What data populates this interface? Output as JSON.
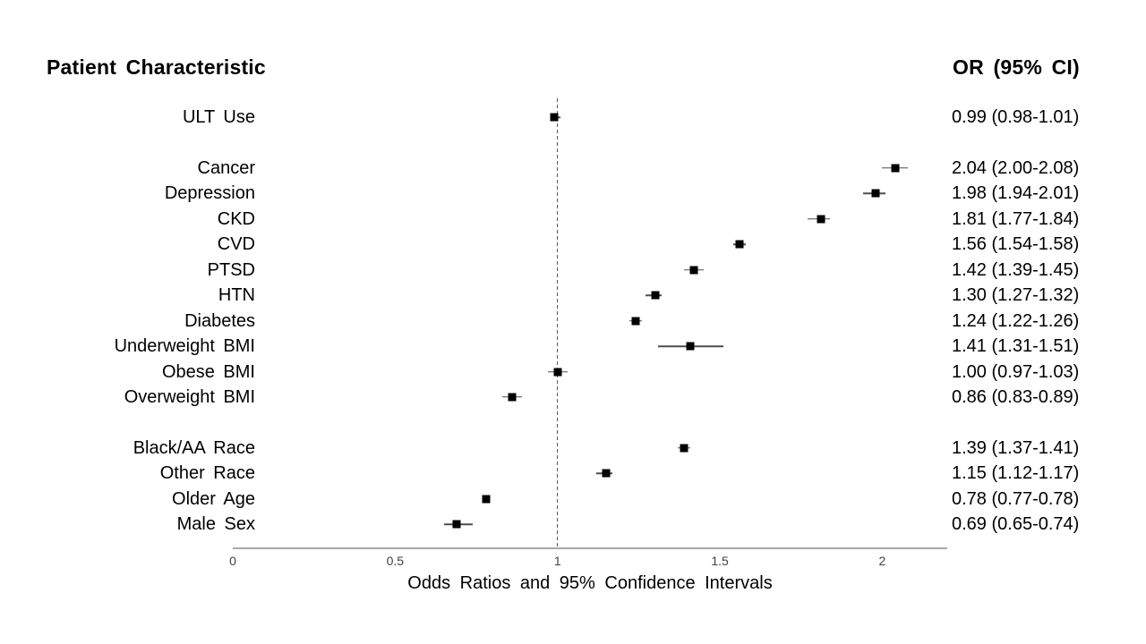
{
  "page": {
    "background": "#ffffff"
  },
  "headers": {
    "left": "Patient Characteristic",
    "right": "OR (95% CI)"
  },
  "colors": {
    "text": "#000000",
    "tick_text": "#404040",
    "axis_line": "#a9a9a9",
    "reference_line": "#595959",
    "whisker": "#4d4d4d",
    "marker": "#000000"
  },
  "chart_data": {
    "type": "scatter",
    "variant": "forest-plot",
    "title": "",
    "xlabel": "Odds Ratios and 95% Confidence Intervals",
    "ylabel_header": "Patient Characteristic",
    "value_header": "OR (95% CI)",
    "xlim": [
      0,
      2.2
    ],
    "grid": false,
    "reference_line_x": 1,
    "xticks": [
      {
        "value": 0,
        "label": "0"
      },
      {
        "value": 0.5,
        "label": "0.5"
      },
      {
        "value": 1,
        "label": "1"
      },
      {
        "value": 1.5,
        "label": "1.5"
      },
      {
        "value": 2,
        "label": "2"
      }
    ],
    "rows": [
      {
        "label": "ULT Use",
        "or": 0.99,
        "ci_low": 0.98,
        "ci_high": 1.01,
        "or_text": "0.99 (0.98-1.01)",
        "gap_before": false
      },
      {
        "label": "Cancer",
        "or": 2.04,
        "ci_low": 2.0,
        "ci_high": 2.08,
        "or_text": "2.04 (2.00-2.08)",
        "gap_before": true
      },
      {
        "label": "Depression",
        "or": 1.98,
        "ci_low": 1.94,
        "ci_high": 2.01,
        "or_text": "1.98 (1.94-2.01)",
        "gap_before": false
      },
      {
        "label": "CKD",
        "or": 1.81,
        "ci_low": 1.77,
        "ci_high": 1.84,
        "or_text": "1.81 (1.77-1.84)",
        "gap_before": false
      },
      {
        "label": "CVD",
        "or": 1.56,
        "ci_low": 1.54,
        "ci_high": 1.58,
        "or_text": "1.56 (1.54-1.58)",
        "gap_before": false
      },
      {
        "label": "PTSD",
        "or": 1.42,
        "ci_low": 1.39,
        "ci_high": 1.45,
        "or_text": "1.42 (1.39-1.45)",
        "gap_before": false
      },
      {
        "label": "HTN",
        "or": 1.3,
        "ci_low": 1.27,
        "ci_high": 1.32,
        "or_text": "1.30 (1.27-1.32)",
        "gap_before": false
      },
      {
        "label": "Diabetes",
        "or": 1.24,
        "ci_low": 1.22,
        "ci_high": 1.26,
        "or_text": "1.24 (1.22-1.26)",
        "gap_before": false
      },
      {
        "label": "Underweight BMI",
        "or": 1.41,
        "ci_low": 1.31,
        "ci_high": 1.51,
        "or_text": "1.41 (1.31-1.51)",
        "gap_before": false
      },
      {
        "label": "Obese BMI",
        "or": 1.0,
        "ci_low": 0.97,
        "ci_high": 1.03,
        "or_text": "1.00 (0.97-1.03)",
        "gap_before": false
      },
      {
        "label": "Overweight BMI",
        "or": 0.86,
        "ci_low": 0.83,
        "ci_high": 0.89,
        "or_text": "0.86 (0.83-0.89)",
        "gap_before": false
      },
      {
        "label": "Black/AA Race",
        "or": 1.39,
        "ci_low": 1.37,
        "ci_high": 1.41,
        "or_text": "1.39 (1.37-1.41)",
        "gap_before": true
      },
      {
        "label": "Other Race",
        "or": 1.15,
        "ci_low": 1.12,
        "ci_high": 1.17,
        "or_text": "1.15 (1.12-1.17)",
        "gap_before": false
      },
      {
        "label": "Older Age",
        "or": 0.78,
        "ci_low": 0.77,
        "ci_high": 0.78,
        "or_text": "0.78 (0.77-0.78)",
        "gap_before": false
      },
      {
        "label": "Male Sex",
        "or": 0.69,
        "ci_low": 0.65,
        "ci_high": 0.74,
        "or_text": "0.69 (0.65-0.74)",
        "gap_before": false
      }
    ]
  }
}
